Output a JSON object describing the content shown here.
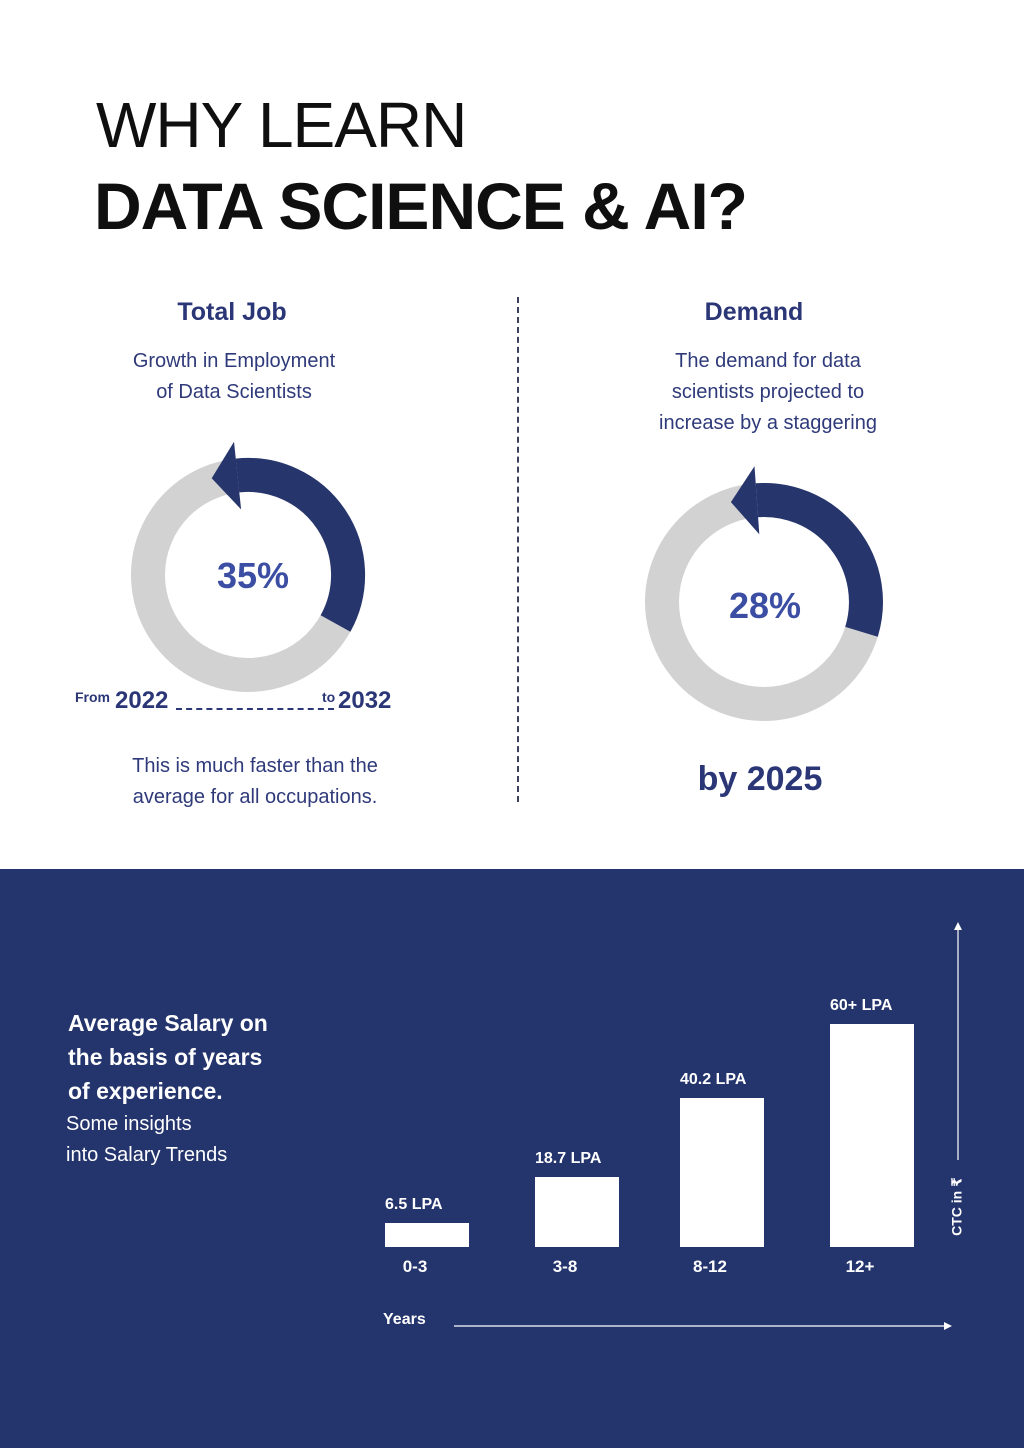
{
  "header": {
    "line1": "WHY LEARN",
    "line2": "DATA SCIENCE & AI?"
  },
  "total_job": {
    "heading": "Total Job",
    "desc_line1": "Growth in Employment",
    "desc_line2": "of Data Scientists",
    "percent": "35%",
    "percent_value": 35,
    "from_label": "From",
    "from_year": "2022",
    "to_label": "to",
    "to_year": "2032",
    "note_line1": "This is much faster than the",
    "note_line2": "average for all occupations."
  },
  "demand": {
    "heading": "Demand",
    "desc_line1": "The demand for data",
    "desc_line2": "scientists projected to",
    "desc_line3": "increase by a staggering",
    "percent": "28%",
    "percent_value": 28,
    "year_label": "by 2025"
  },
  "salary": {
    "title_line1": "Average Salary on",
    "title_line2": "the basis of years",
    "title_line3": "of experience.",
    "sub_line1": "Some insights",
    "sub_line2": "into Salary Trends",
    "x_axis_label": "Years",
    "y_axis_label": "CTC in ₹"
  },
  "colors": {
    "navy": "#24346c",
    "ring_accent": "#26356c",
    "ring_track": "#d2d2d2",
    "text_accent": "#2b3676"
  },
  "chart_data": {
    "type": "bar",
    "categories": [
      "0-3",
      "3-8",
      "8-12",
      "12+"
    ],
    "values": [
      6.5,
      18.7,
      40.2,
      60
    ],
    "value_labels": [
      "6.5 LPA",
      "18.7 LPA",
      "40.2 LPA",
      "60+ LPA"
    ],
    "xlabel": "Years",
    "ylabel": "CTC in ₹",
    "grid": false
  }
}
